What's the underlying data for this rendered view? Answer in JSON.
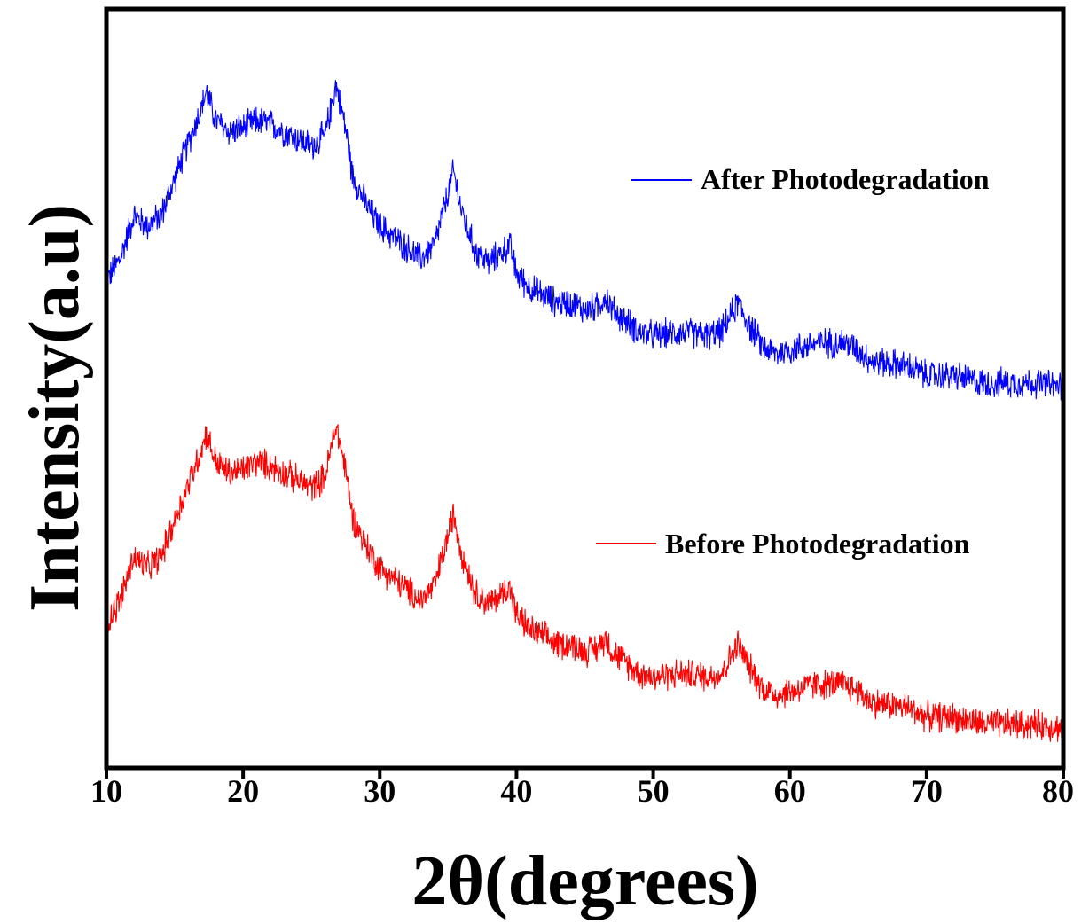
{
  "chart_data": {
    "type": "line",
    "title": "",
    "xlabel": "2θ(degrees)",
    "ylabel": "Intensity(a.u)",
    "xlim": [
      10,
      80
    ],
    "xticks": [
      "10",
      "20",
      "30",
      "40",
      "50",
      "60",
      "70",
      "80"
    ],
    "y_ticks_shown": false,
    "grid": false,
    "legend_placement": "inline-right",
    "series": [
      {
        "name": "After Photodegradation",
        "color": "#0000ff",
        "noise": 0.035,
        "points": [
          [
            10,
            0.38
          ],
          [
            11,
            0.44
          ],
          [
            12,
            0.56
          ],
          [
            13,
            0.53
          ],
          [
            14,
            0.56
          ],
          [
            15,
            0.66
          ],
          [
            16,
            0.76
          ],
          [
            17,
            0.86
          ],
          [
            17.3,
            0.9
          ],
          [
            18,
            0.82
          ],
          [
            19,
            0.79
          ],
          [
            20,
            0.8
          ],
          [
            21,
            0.82
          ],
          [
            22,
            0.81
          ],
          [
            23,
            0.79
          ],
          [
            24,
            0.77
          ],
          [
            25,
            0.75
          ],
          [
            26,
            0.78
          ],
          [
            26.8,
            0.92
          ],
          [
            27.5,
            0.8
          ],
          [
            28,
            0.67
          ],
          [
            29,
            0.59
          ],
          [
            30,
            0.53
          ],
          [
            31,
            0.5
          ],
          [
            32,
            0.47
          ],
          [
            33,
            0.44
          ],
          [
            34,
            0.48
          ],
          [
            35,
            0.62
          ],
          [
            35.4,
            0.68
          ],
          [
            36,
            0.57
          ],
          [
            37,
            0.46
          ],
          [
            38,
            0.43
          ],
          [
            39,
            0.46
          ],
          [
            39.5,
            0.48
          ],
          [
            40,
            0.4
          ],
          [
            41,
            0.36
          ],
          [
            42,
            0.34
          ],
          [
            43,
            0.32
          ],
          [
            44,
            0.32
          ],
          [
            45,
            0.3
          ],
          [
            46,
            0.31
          ],
          [
            46.5,
            0.34
          ],
          [
            47,
            0.3
          ],
          [
            48,
            0.27
          ],
          [
            49,
            0.24
          ],
          [
            50,
            0.23
          ],
          [
            52,
            0.24
          ],
          [
            54,
            0.23
          ],
          [
            55,
            0.24
          ],
          [
            56.2,
            0.32
          ],
          [
            57,
            0.26
          ],
          [
            58,
            0.2
          ],
          [
            59,
            0.18
          ],
          [
            60,
            0.19
          ],
          [
            62,
            0.21
          ],
          [
            64,
            0.21
          ],
          [
            65,
            0.19
          ],
          [
            66,
            0.16
          ],
          [
            68,
            0.15
          ],
          [
            69,
            0.14
          ],
          [
            70,
            0.12
          ],
          [
            72,
            0.12
          ],
          [
            74,
            0.1
          ],
          [
            76,
            0.1
          ],
          [
            78,
            0.1
          ],
          [
            80,
            0.09
          ]
        ]
      },
      {
        "name": "Before Photodegradation",
        "color": "#ff0000",
        "noise": 0.035,
        "points": [
          [
            10,
            0.38
          ],
          [
            11,
            0.44
          ],
          [
            12,
            0.56
          ],
          [
            13,
            0.53
          ],
          [
            14,
            0.56
          ],
          [
            15,
            0.66
          ],
          [
            16,
            0.76
          ],
          [
            17,
            0.86
          ],
          [
            17.3,
            0.9
          ],
          [
            18,
            0.82
          ],
          [
            19,
            0.79
          ],
          [
            20,
            0.8
          ],
          [
            21,
            0.82
          ],
          [
            22,
            0.81
          ],
          [
            23,
            0.79
          ],
          [
            24,
            0.77
          ],
          [
            25,
            0.75
          ],
          [
            26,
            0.78
          ],
          [
            26.8,
            0.92
          ],
          [
            27.5,
            0.8
          ],
          [
            28,
            0.67
          ],
          [
            29,
            0.59
          ],
          [
            30,
            0.53
          ],
          [
            31,
            0.5
          ],
          [
            32,
            0.47
          ],
          [
            33,
            0.44
          ],
          [
            34,
            0.48
          ],
          [
            35,
            0.62
          ],
          [
            35.4,
            0.68
          ],
          [
            36,
            0.57
          ],
          [
            37,
            0.46
          ],
          [
            38,
            0.43
          ],
          [
            39,
            0.46
          ],
          [
            39.5,
            0.48
          ],
          [
            40,
            0.4
          ],
          [
            41,
            0.36
          ],
          [
            42,
            0.34
          ],
          [
            43,
            0.32
          ],
          [
            44,
            0.32
          ],
          [
            45,
            0.3
          ],
          [
            46,
            0.31
          ],
          [
            46.5,
            0.34
          ],
          [
            47,
            0.3
          ],
          [
            48,
            0.27
          ],
          [
            49,
            0.24
          ],
          [
            50,
            0.23
          ],
          [
            52,
            0.24
          ],
          [
            54,
            0.23
          ],
          [
            55,
            0.24
          ],
          [
            56.2,
            0.32
          ],
          [
            57,
            0.26
          ],
          [
            58,
            0.2
          ],
          [
            59,
            0.18
          ],
          [
            60,
            0.19
          ],
          [
            62,
            0.21
          ],
          [
            64,
            0.21
          ],
          [
            65,
            0.19
          ],
          [
            66,
            0.16
          ],
          [
            68,
            0.15
          ],
          [
            69,
            0.14
          ],
          [
            70,
            0.12
          ],
          [
            72,
            0.12
          ],
          [
            74,
            0.1
          ],
          [
            76,
            0.1
          ],
          [
            78,
            0.1
          ],
          [
            80,
            0.09
          ]
        ]
      }
    ]
  }
}
